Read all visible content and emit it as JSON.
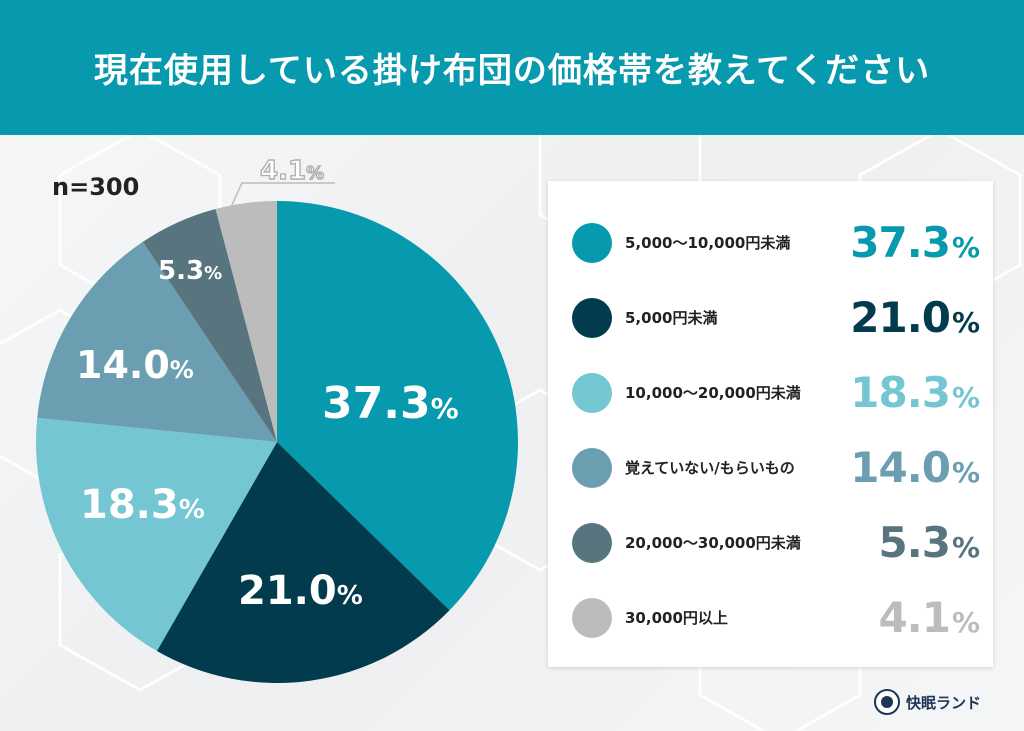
{
  "header": {
    "title": "現在使用している掛け布団の価格帯を教えてください"
  },
  "sample": {
    "label": "n=300"
  },
  "legend": {
    "items": [
      {
        "label": "5,000〜10,000円未満",
        "value": "37.3",
        "unit": "%",
        "color": "#0799ae"
      },
      {
        "label": "5,000円未満",
        "value": "21.0",
        "unit": "%",
        "color": "#023a4e"
      },
      {
        "label": "10,000〜20,000円未満",
        "value": "18.3",
        "unit": "%",
        "color": "#74c6d2"
      },
      {
        "label": "覚えていない/もらいもの",
        "value": "14.0",
        "unit": "%",
        "color": "#6c9eb1"
      },
      {
        "label": "20,000〜30,000円未満",
        "value": "5.3",
        "unit": "%",
        "color": "#58747f"
      },
      {
        "label": "30,000円以上",
        "value": "4.1",
        "unit": "%",
        "color": "#bcbcbc"
      }
    ]
  },
  "pie_labels": {
    "s0": "37.3",
    "s1": "21.0",
    "s2": "18.3",
    "s3": "14.0",
    "s4": "5.3",
    "s5": "4.1",
    "unit": "%"
  },
  "brand": {
    "name": "快眠ランド"
  },
  "chart_data": {
    "type": "pie",
    "title": "現在使用している掛け布団の価格帯を教えてください",
    "subtitle": "n=300",
    "categories": [
      "5,000〜10,000円未満",
      "5,000円未満",
      "10,000〜20,000円未満",
      "覚えていない/もらいもの",
      "20,000〜30,000円未満",
      "30,000円以上"
    ],
    "values": [
      37.3,
      21.0,
      18.3,
      14.0,
      5.3,
      4.1
    ],
    "unit": "%",
    "colors": [
      "#0799ae",
      "#023a4e",
      "#74c6d2",
      "#6c9eb1",
      "#58747f",
      "#bcbcbc"
    ],
    "start_angle": "12 o'clock, clockwise",
    "legend_position": "right"
  }
}
